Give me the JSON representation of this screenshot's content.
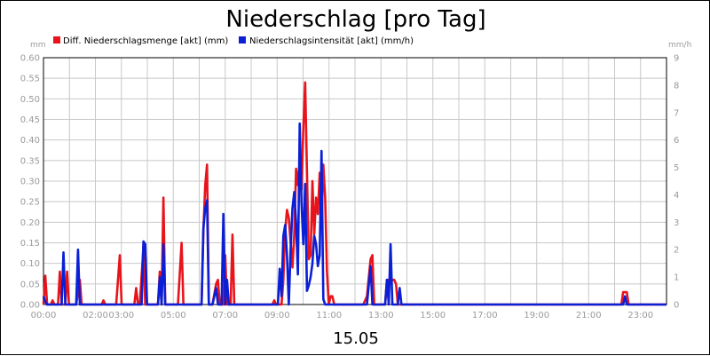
{
  "chart_data": {
    "type": "line",
    "title": "Niederschlag [pro Tag]",
    "date_label": "15.05",
    "y_left_unit": "mm",
    "y_right_unit": "mm/h",
    "y_left_range": [
      0,
      0.6
    ],
    "y_right_range": [
      0,
      9
    ],
    "y_left_ticks": [
      "0.00",
      "0.05",
      "0.10",
      "0.15",
      "0.20",
      "0.25",
      "0.30",
      "0.35",
      "0.40",
      "0.45",
      "0.50",
      "0.55",
      "0.60"
    ],
    "y_right_ticks": [
      "0",
      "1",
      "2",
      "3",
      "4",
      "5",
      "6",
      "7",
      "8",
      "9"
    ],
    "x_range_hours": [
      0,
      24
    ],
    "x_ticks": [
      {
        "h": 0,
        "label": "00:00"
      },
      {
        "h": 2,
        "label": "02:00"
      },
      {
        "h": 3,
        "label": "03:00"
      },
      {
        "h": 5,
        "label": "05:00"
      },
      {
        "h": 7,
        "label": "07:00"
      },
      {
        "h": 9,
        "label": "09:00"
      },
      {
        "h": 11,
        "label": "11:00"
      },
      {
        "h": 13,
        "label": "13:00"
      },
      {
        "h": 15,
        "label": "15:00"
      },
      {
        "h": 17,
        "label": "17:00"
      },
      {
        "h": 19,
        "label": "19:00"
      },
      {
        "h": 21,
        "label": "21:00"
      },
      {
        "h": 23,
        "label": "23:00"
      }
    ],
    "grid": true,
    "legend_position": "top-left",
    "series": [
      {
        "name": "Diff. Niederschlagsmenge [akt] (mm)",
        "color": "#e8141c",
        "axis": "left",
        "points": [
          [
            0.0,
            0.0
          ],
          [
            0.07,
            0.07
          ],
          [
            0.14,
            0.0
          ],
          [
            0.28,
            0.0
          ],
          [
            0.35,
            0.01
          ],
          [
            0.42,
            0.0
          ],
          [
            0.56,
            0.0
          ],
          [
            0.63,
            0.08
          ],
          [
            0.7,
            0.0
          ],
          [
            0.84,
            0.0
          ],
          [
            0.91,
            0.08
          ],
          [
            0.98,
            0.0
          ],
          [
            1.26,
            0.0
          ],
          [
            1.4,
            0.06
          ],
          [
            1.47,
            0.0
          ],
          [
            2.24,
            0.0
          ],
          [
            2.31,
            0.01
          ],
          [
            2.38,
            0.0
          ],
          [
            2.8,
            0.0
          ],
          [
            2.94,
            0.12
          ],
          [
            3.01,
            0.0
          ],
          [
            3.5,
            0.0
          ],
          [
            3.57,
            0.04
          ],
          [
            3.64,
            0.0
          ],
          [
            3.71,
            0.0
          ],
          [
            3.85,
            0.14
          ],
          [
            3.92,
            0.0
          ],
          [
            4.41,
            0.0
          ],
          [
            4.48,
            0.08
          ],
          [
            4.55,
            0.0
          ],
          [
            4.62,
            0.26
          ],
          [
            4.69,
            0.0
          ],
          [
            5.18,
            0.0
          ],
          [
            5.32,
            0.15
          ],
          [
            5.39,
            0.0
          ],
          [
            6.09,
            0.0
          ],
          [
            6.16,
            0.18
          ],
          [
            6.23,
            0.29
          ],
          [
            6.3,
            0.34
          ],
          [
            6.37,
            0.0
          ],
          [
            6.51,
            0.0
          ],
          [
            6.65,
            0.05
          ],
          [
            6.72,
            0.06
          ],
          [
            6.79,
            0.0
          ],
          [
            6.93,
            0.0
          ],
          [
            7.0,
            0.12
          ],
          [
            7.07,
            0.0
          ],
          [
            7.21,
            0.0
          ],
          [
            7.28,
            0.17
          ],
          [
            7.35,
            0.0
          ],
          [
            8.82,
            0.0
          ],
          [
            8.89,
            0.01
          ],
          [
            8.96,
            0.0
          ],
          [
            9.17,
            0.0
          ],
          [
            9.24,
            0.06
          ],
          [
            9.31,
            0.18
          ],
          [
            9.38,
            0.23
          ],
          [
            9.45,
            0.21
          ],
          [
            9.52,
            0.15
          ],
          [
            9.59,
            0.09
          ],
          [
            9.66,
            0.17
          ],
          [
            9.73,
            0.33
          ],
          [
            9.8,
            0.29
          ],
          [
            9.87,
            0.35
          ],
          [
            9.94,
            0.28
          ],
          [
            10.01,
            0.43
          ],
          [
            10.08,
            0.54
          ],
          [
            10.15,
            0.32
          ],
          [
            10.22,
            0.11
          ],
          [
            10.29,
            0.12
          ],
          [
            10.36,
            0.3
          ],
          [
            10.43,
            0.17
          ],
          [
            10.5,
            0.26
          ],
          [
            10.57,
            0.22
          ],
          [
            10.64,
            0.32
          ],
          [
            10.71,
            0.2
          ],
          [
            10.78,
            0.34
          ],
          [
            10.85,
            0.26
          ],
          [
            10.92,
            0.08
          ],
          [
            10.99,
            0.0
          ],
          [
            11.06,
            0.02
          ],
          [
            11.13,
            0.02
          ],
          [
            11.2,
            0.0
          ],
          [
            12.32,
            0.0
          ],
          [
            12.46,
            0.02
          ],
          [
            12.6,
            0.11
          ],
          [
            12.67,
            0.12
          ],
          [
            12.74,
            0.0
          ],
          [
            13.16,
            0.0
          ],
          [
            13.23,
            0.06
          ],
          [
            13.3,
            0.06
          ],
          [
            13.37,
            0.05
          ],
          [
            13.44,
            0.06
          ],
          [
            13.51,
            0.06
          ],
          [
            13.58,
            0.05
          ],
          [
            13.65,
            0.0
          ],
          [
            22.26,
            0.0
          ],
          [
            22.33,
            0.03
          ],
          [
            22.47,
            0.03
          ],
          [
            22.54,
            0.0
          ],
          [
            24.0,
            0.0
          ]
        ]
      },
      {
        "name": "Niederschlagsintensität [akt] (mm/h)",
        "color": "#0a1fd6",
        "axis": "right",
        "points": [
          [
            0.0,
            0.3
          ],
          [
            0.07,
            0.1
          ],
          [
            0.14,
            0.0
          ],
          [
            0.7,
            0.0
          ],
          [
            0.77,
            1.9
          ],
          [
            0.84,
            0.0
          ],
          [
            1.26,
            0.0
          ],
          [
            1.33,
            2.0
          ],
          [
            1.4,
            0.0
          ],
          [
            3.78,
            0.0
          ],
          [
            3.85,
            2.3
          ],
          [
            3.92,
            2.2
          ],
          [
            3.99,
            0.0
          ],
          [
            4.41,
            0.0
          ],
          [
            4.48,
            1.0
          ],
          [
            4.55,
            0.0
          ],
          [
            4.62,
            2.2
          ],
          [
            4.69,
            0.0
          ],
          [
            6.09,
            0.0
          ],
          [
            6.16,
            2.8
          ],
          [
            6.23,
            3.5
          ],
          [
            6.3,
            3.8
          ],
          [
            6.37,
            0.0
          ],
          [
            6.51,
            0.0
          ],
          [
            6.65,
            0.6
          ],
          [
            6.72,
            0.0
          ],
          [
            6.86,
            0.0
          ],
          [
            6.93,
            3.3
          ],
          [
            7.0,
            0.0
          ],
          [
            7.07,
            0.9
          ],
          [
            7.14,
            0.0
          ],
          [
            9.03,
            0.0
          ],
          [
            9.1,
            1.3
          ],
          [
            9.17,
            0.3
          ],
          [
            9.24,
            2.5
          ],
          [
            9.31,
            2.9
          ],
          [
            9.38,
            1.8
          ],
          [
            9.45,
            0.0
          ],
          [
            9.52,
            2.0
          ],
          [
            9.59,
            3.5
          ],
          [
            9.66,
            4.1
          ],
          [
            9.73,
            3.0
          ],
          [
            9.8,
            1.1
          ],
          [
            9.87,
            6.6
          ],
          [
            9.94,
            3.7
          ],
          [
            10.01,
            2.2
          ],
          [
            10.08,
            4.4
          ],
          [
            10.15,
            0.5
          ],
          [
            10.22,
            0.7
          ],
          [
            10.29,
            1.0
          ],
          [
            10.36,
            1.5
          ],
          [
            10.43,
            2.5
          ],
          [
            10.5,
            2.2
          ],
          [
            10.57,
            1.4
          ],
          [
            10.64,
            1.8
          ],
          [
            10.71,
            5.6
          ],
          [
            10.78,
            0.2
          ],
          [
            10.85,
            0.0
          ],
          [
            12.46,
            0.0
          ],
          [
            12.6,
            1.4
          ],
          [
            12.67,
            0.0
          ],
          [
            13.16,
            0.0
          ],
          [
            13.23,
            0.9
          ],
          [
            13.3,
            0.0
          ],
          [
            13.37,
            2.2
          ],
          [
            13.44,
            0.0
          ],
          [
            13.65,
            0.0
          ],
          [
            13.72,
            0.6
          ],
          [
            13.79,
            0.0
          ],
          [
            22.33,
            0.0
          ],
          [
            22.4,
            0.3
          ],
          [
            22.47,
            0.0
          ],
          [
            24.0,
            0.0
          ]
        ]
      }
    ]
  }
}
